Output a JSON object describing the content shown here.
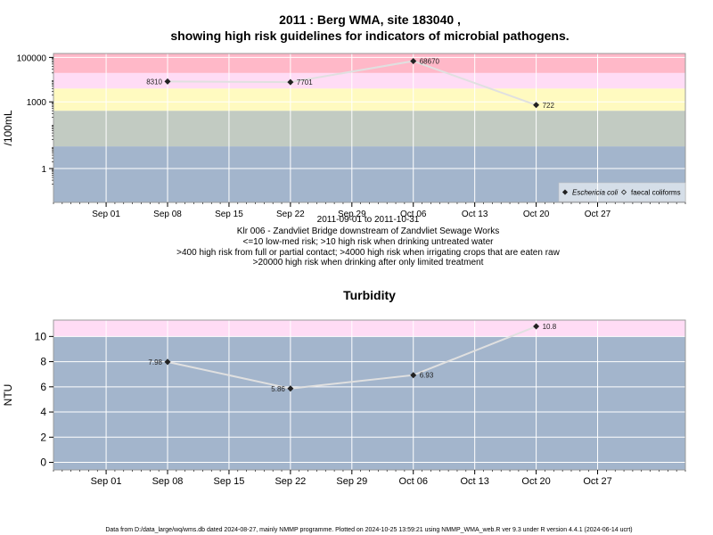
{
  "header": {
    "title_line1": "2011 : Berg WMA, site 183040 ,",
    "title_line2": "showing high risk guidelines for indicators of microbial pathogens."
  },
  "top_caption": [
    "2011-09-01 to 2011-10-31",
    "Klr 006 - Zandvliet Bridge downstream of Zandvliet Sewage Works",
    "<=10 low-med risk; >10 high risk when drinking untreated water",
    ">400 high risk from full or partial contact; >4000 high risk when irrigating crops that are eaten raw",
    ">20000 high risk when drinking after only limited treatment"
  ],
  "footer": "Data from D:/data_large/wq/wms.db dated 2024-08-27, mainly NMMP programme. Plotted on 2024-10-25 13:59:21 using NMMP_WMA_web.R ver 9.3 under R version 4.4.1 (2024-06-14 ucrt)",
  "colors": {
    "band_blue": "#a3b5cc",
    "band_green": "#c2cbc2",
    "band_yellow": "#fffac0",
    "band_pink": "#ffdcf5",
    "band_red": "#ffb8c8",
    "line": "#e0e0e0",
    "point": "#222222"
  },
  "chart_data": [
    {
      "type": "line",
      "title": "",
      "xlabel": "",
      "ylabel": "/100mL",
      "yscale": "log",
      "ylim": [
        0.03,
        150000
      ],
      "xlim": [
        "2011-08-26",
        "2011-11-06"
      ],
      "yticks": [
        1,
        1000,
        100000
      ],
      "ytick_labels": [
        "1",
        "1000",
        "100000"
      ],
      "xticks": [
        "2011-09-01",
        "2011-09-08",
        "2011-09-15",
        "2011-09-22",
        "2011-09-29",
        "2011-10-06",
        "2011-10-13",
        "2011-10-20",
        "2011-10-27"
      ],
      "xtick_labels": [
        "Sep 01",
        "Sep 08",
        "Sep 15",
        "Sep 22",
        "Sep 29",
        "Oct 06",
        "Oct 13",
        "Oct 20",
        "Oct 27"
      ],
      "grid": true,
      "risk_bands": [
        {
          "from": 0.03,
          "to": 10,
          "color": "band_blue"
        },
        {
          "from": 10,
          "to": 400,
          "color": "band_green"
        },
        {
          "from": 400,
          "to": 4000,
          "color": "band_yellow"
        },
        {
          "from": 4000,
          "to": 20000,
          "color": "band_pink"
        },
        {
          "from": 20000,
          "to": 150000,
          "color": "band_red"
        }
      ],
      "series": [
        {
          "name": "Eschericia coli",
          "marker": "filled-diamond",
          "x": [
            "2011-09-08",
            "2011-09-22",
            "2011-10-06",
            "2011-10-20"
          ],
          "values": [
            8310,
            7701,
            68670,
            722
          ],
          "labels": [
            "8310",
            "7701",
            "68670",
            "722"
          ],
          "label_side": [
            "left",
            "right",
            "right",
            "right"
          ]
        },
        {
          "name": "faecal coliforms",
          "marker": "open-diamond",
          "x": [],
          "values": []
        }
      ],
      "legend_position": "bottom-right"
    },
    {
      "type": "line",
      "title": "Turbidity",
      "xlabel": "",
      "ylabel": "NTU",
      "yscale": "linear",
      "ylim": [
        -0.6,
        11.3
      ],
      "xlim": [
        "2011-08-26",
        "2011-11-06"
      ],
      "yticks": [
        0,
        2,
        4,
        6,
        8,
        10
      ],
      "ytick_labels": [
        "0",
        "2",
        "4",
        "6",
        "8",
        "10"
      ],
      "xticks": [
        "2011-09-01",
        "2011-09-08",
        "2011-09-15",
        "2011-09-22",
        "2011-09-29",
        "2011-10-06",
        "2011-10-13",
        "2011-10-20",
        "2011-10-27"
      ],
      "xtick_labels": [
        "Sep 01",
        "Sep 08",
        "Sep 15",
        "Sep 22",
        "Sep 29",
        "Oct 06",
        "Oct 13",
        "Oct 20",
        "Oct 27"
      ],
      "grid": true,
      "risk_bands": [
        {
          "from": -0.6,
          "to": 10,
          "color": "band_blue"
        },
        {
          "from": 10,
          "to": 11.3,
          "color": "band_pink"
        }
      ],
      "series": [
        {
          "name": "",
          "marker": "filled-diamond",
          "x": [
            "2011-09-08",
            "2011-09-22",
            "2011-10-06",
            "2011-10-20"
          ],
          "values": [
            7.98,
            5.86,
            6.93,
            10.8
          ],
          "labels": [
            "7.98",
            "5.86",
            "6.93",
            "10.8"
          ],
          "label_side": [
            "left",
            "left",
            "right",
            "right"
          ]
        }
      ]
    }
  ]
}
